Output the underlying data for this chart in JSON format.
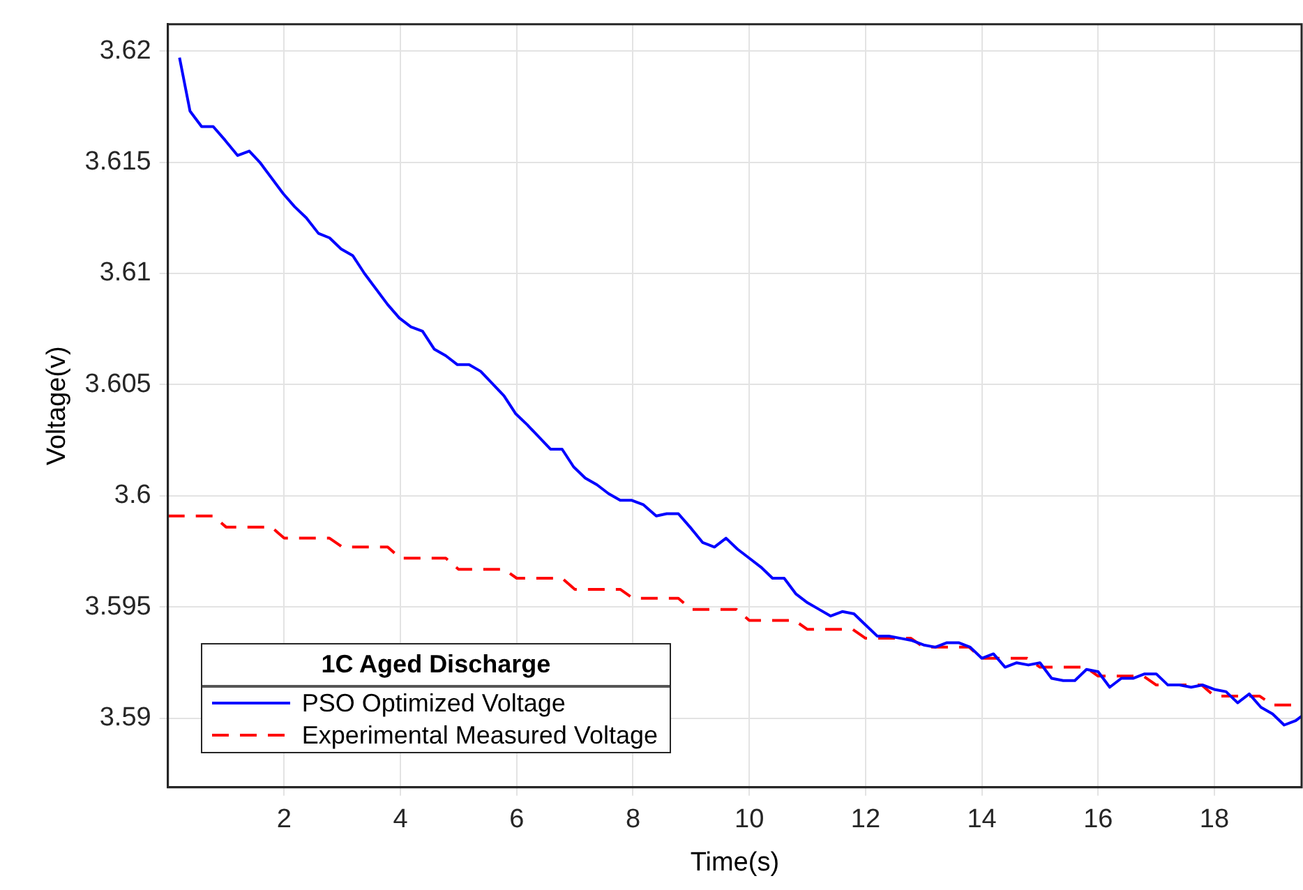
{
  "chart_data": {
    "type": "line",
    "xlabel": "Time(s)",
    "ylabel": "Voltage(v)",
    "legend_title": "1C Aged Discharge",
    "xlim": [
      0,
      19.5
    ],
    "xticks": [
      2,
      4,
      6,
      8,
      10,
      12,
      14,
      16,
      18
    ],
    "ylim": [
      3.5869,
      3.6212
    ],
    "yticks": [
      3.59,
      3.595,
      3.6,
      3.605,
      3.61,
      3.615,
      3.62
    ],
    "grid": true,
    "legend": "bottom left",
    "marker": "none",
    "series": [
      {
        "name": "PSO Optimized Voltage",
        "color": "#0000ff",
        "line_style": "solid",
        "x": [
          0.2,
          0.38,
          0.58,
          0.78,
          0.98,
          1.2,
          1.4,
          1.58,
          1.98,
          2.18,
          2.38,
          2.59,
          2.78,
          2.98,
          3.18,
          3.38,
          3.78,
          3.98,
          4.18,
          4.38,
          4.58,
          4.78,
          4.98,
          5.18,
          5.38,
          5.78,
          5.98,
          6.18,
          6.58,
          6.78,
          6.98,
          7.18,
          7.38,
          7.58,
          7.78,
          7.98,
          8.18,
          8.4,
          8.58,
          8.78,
          8.98,
          9.2,
          9.4,
          9.6,
          9.8,
          10.0,
          10.2,
          10.4,
          10.6,
          10.8,
          11.0,
          11.2,
          11.4,
          11.6,
          11.8,
          12.0,
          12.2,
          12.4,
          12.6,
          12.8,
          13.0,
          13.2,
          13.4,
          13.6,
          13.8,
          14.0,
          14.2,
          14.4,
          14.6,
          14.8,
          15.0,
          15.2,
          15.4,
          15.6,
          15.8,
          16.0,
          16.2,
          16.4,
          16.6,
          16.8,
          17.0,
          17.2,
          17.4,
          17.6,
          17.8,
          18.0,
          18.2,
          18.4,
          18.6,
          18.8,
          19.0,
          19.2,
          19.4,
          19.5
        ],
        "values": [
          3.6197,
          3.6173,
          3.6166,
          3.6166,
          3.616,
          3.6153,
          3.6155,
          3.615,
          3.6136,
          3.613,
          3.6125,
          3.6118,
          3.6116,
          3.6111,
          3.6108,
          3.61,
          3.6086,
          3.608,
          3.6076,
          3.6074,
          3.6066,
          3.6063,
          3.6059,
          3.6059,
          3.6056,
          3.6045,
          3.6037,
          3.6032,
          3.6021,
          3.6021,
          3.6013,
          3.6008,
          3.6005,
          3.6001,
          3.5998,
          3.5998,
          3.5996,
          3.5991,
          3.5992,
          3.5992,
          3.5986,
          3.5979,
          3.5977,
          3.5981,
          3.5976,
          3.5972,
          3.5968,
          3.5963,
          3.5963,
          3.5956,
          3.5952,
          3.5949,
          3.5946,
          3.5948,
          3.5947,
          3.5942,
          3.5937,
          3.5937,
          3.5936,
          3.5935,
          3.5933,
          3.5932,
          3.5934,
          3.5934,
          3.5932,
          3.5927,
          3.5929,
          3.5923,
          3.5925,
          3.5924,
          3.5925,
          3.5918,
          3.5917,
          3.5917,
          3.5922,
          3.5921,
          3.5914,
          3.5918,
          3.5918,
          3.592,
          3.592,
          3.5915,
          3.5915,
          3.5914,
          3.5915,
          3.5913,
          3.5912,
          3.5907,
          3.5911,
          3.5905,
          3.5902,
          3.5897,
          3.5899,
          3.5901
        ]
      },
      {
        "name": "Experimental Measured Voltage",
        "color": "#ff0000",
        "line_style": "dashed",
        "x": [
          0,
          0.78,
          1.0,
          1.78,
          2.0,
          2.78,
          3.0,
          3.78,
          4.0,
          4.78,
          5.0,
          5.78,
          6.0,
          6.78,
          7.0,
          7.78,
          8.0,
          8.78,
          9.0,
          9.78,
          10.0,
          10.78,
          11.0,
          11.78,
          12.0,
          12.78,
          13.0,
          13.78,
          14.0,
          14.78,
          15.0,
          15.78,
          16.0,
          16.78,
          17.0,
          17.78,
          18.0,
          18.78,
          19.0,
          19.5
        ],
        "values": [
          3.5991,
          3.5991,
          3.5986,
          3.5986,
          3.5981,
          3.5981,
          3.5977,
          3.5977,
          3.5972,
          3.5972,
          3.5967,
          3.5967,
          3.5963,
          3.5963,
          3.5958,
          3.5958,
          3.5954,
          3.5954,
          3.5949,
          3.5949,
          3.5944,
          3.5944,
          3.594,
          3.594,
          3.5936,
          3.5936,
          3.5932,
          3.5932,
          3.5927,
          3.5927,
          3.5923,
          3.5923,
          3.5919,
          3.5919,
          3.5915,
          3.5915,
          3.591,
          3.591,
          3.5906,
          3.5906
        ]
      }
    ]
  }
}
